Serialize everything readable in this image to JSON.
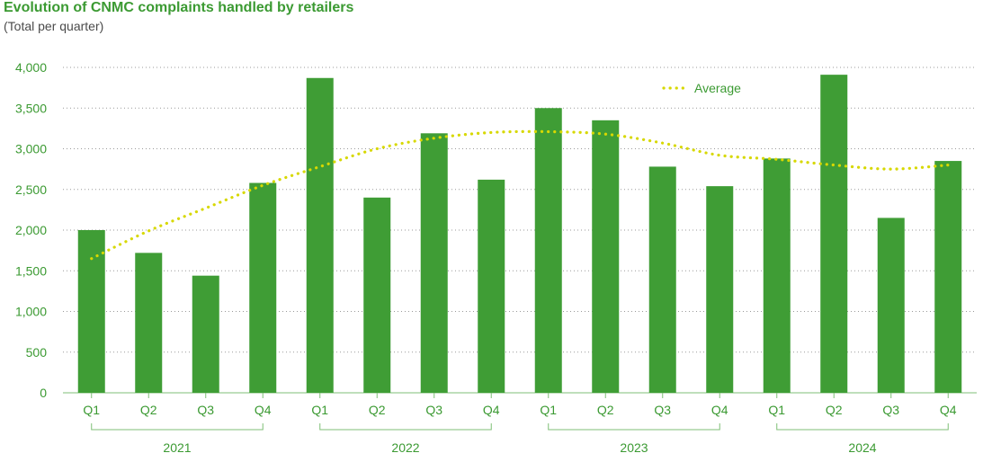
{
  "header": {
    "title": "Evolution of CNMC complaints handled by retailers",
    "subtitle": "(Total per quarter)"
  },
  "colors": {
    "bar": "#3f9d35",
    "average": "#d7d800",
    "text": "#3b9a32",
    "grid": "#9a9a9a"
  },
  "chart_data": {
    "type": "bar",
    "title": "Evolution of CNMC complaints handled by retailers",
    "subtitle": "(Total per quarter)",
    "xlabel": "",
    "ylabel": "",
    "ylim": [
      0,
      4000
    ],
    "yticks": [
      0,
      500,
      1000,
      1500,
      2000,
      2500,
      3000,
      3500,
      4000
    ],
    "ytick_labels": [
      "0",
      "500",
      "1,000",
      "1,500",
      "2,000",
      "2,500",
      "3,000",
      "3,500",
      "4,000"
    ],
    "grid": "horizontal dotted",
    "legend": {
      "position": "top-right",
      "entries": [
        "Average"
      ]
    },
    "categories": [
      "Q1",
      "Q2",
      "Q3",
      "Q4",
      "Q1",
      "Q2",
      "Q3",
      "Q4",
      "Q1",
      "Q2",
      "Q3",
      "Q4",
      "Q1",
      "Q2",
      "Q3",
      "Q4"
    ],
    "groups": [
      {
        "label": "2021",
        "count": 4
      },
      {
        "label": "2022",
        "count": 4
      },
      {
        "label": "2023",
        "count": 4
      },
      {
        "label": "2024",
        "count": 4
      }
    ],
    "series": [
      {
        "type": "bar",
        "values": [
          2000,
          1720,
          1440,
          2580,
          3870,
          2400,
          3190,
          2620,
          3500,
          3350,
          2780,
          2540,
          2880,
          3910,
          2150,
          2850
        ]
      },
      {
        "name": "Average",
        "type": "line",
        "style": "dotted",
        "values": [
          1650,
          1990,
          2270,
          2550,
          2780,
          3000,
          3130,
          3200,
          3210,
          3180,
          3070,
          2920,
          2870,
          2800,
          2750,
          2800
        ]
      }
    ]
  }
}
